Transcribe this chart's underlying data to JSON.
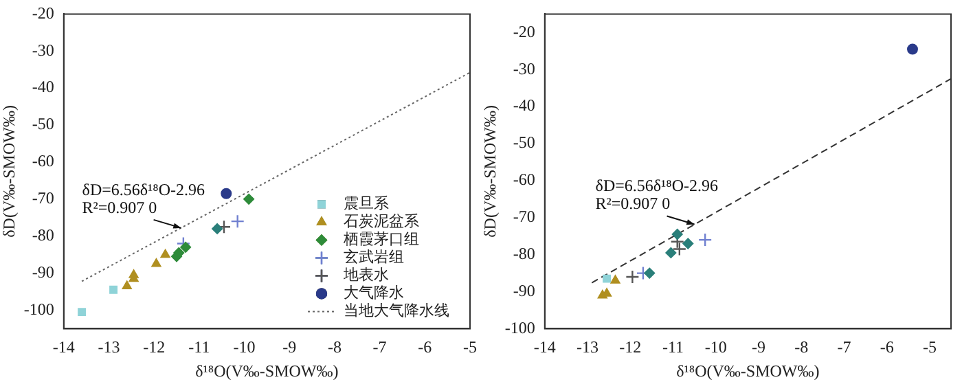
{
  "chart_data": [
    {
      "type": "scatter",
      "xlabel": "δ¹⁸O(V‰-SMOW‰)",
      "ylabel": "δD(V‰-SMOW‰)",
      "xlim": [
        -14,
        -5
      ],
      "ylim": [
        -105,
        -20
      ],
      "xticks": [
        -14,
        -13,
        -12,
        -11,
        -10,
        -9,
        -8,
        -7,
        -6,
        -5
      ],
      "yticks": [
        -20,
        -30,
        -40,
        -50,
        -60,
        -70,
        -80,
        -90,
        -100
      ],
      "grid": false,
      "legend": "bottom right",
      "annotations": [
        {
          "text": "δD=6.56δ¹⁸O-2.96",
          "x": -11.4,
          "y": -77.8
        },
        "R²=0.907 0"
      ],
      "series": [
        {
          "name": "震旦系",
          "color": "#8fd3d8",
          "marker": "square",
          "x": [
            -13.6,
            -12.9
          ],
          "values": [
            -100.5,
            -94.5
          ]
        },
        {
          "name": "石炭泥盆系",
          "color": "#b08f20",
          "marker": "triangle",
          "x": [
            -12.6,
            -12.45,
            -12.45,
            -11.95,
            -11.75
          ],
          "values": [
            -93.5,
            -91.5,
            -90.5,
            -87.5,
            -85
          ]
        },
        {
          "name": "栖霞茅口组",
          "color": "#2e8b3a",
          "colors": [
            "#2e8b3a",
            "#2e8b3a",
            "#2e8b3a",
            "#2e8b3a",
            "#2a7f7a"
          ],
          "marker": "diamond",
          "x": [
            -11.5,
            -11.45,
            -11.3,
            -9.9,
            -10.6
          ],
          "values": [
            -85.5,
            -84.5,
            -83,
            -70,
            -78
          ]
        },
        {
          "name": "玄武岩组",
          "color": "#7080d0",
          "marker": "cross",
          "x": [
            -11.35,
            -10.15
          ],
          "values": [
            -82,
            -76
          ]
        },
        {
          "name": "地表水",
          "color": "#555555",
          "marker": "cross",
          "x": [
            -10.45
          ],
          "values": [
            -77.5
          ]
        },
        {
          "name": "大气降水",
          "color": "#2a3a8a",
          "marker": "circle",
          "x": [
            -10.4
          ],
          "values": [
            -68.5
          ]
        },
        {
          "name": "当地大气降水线",
          "type": "line",
          "color": "#666666",
          "line_style": "dotted",
          "marker": "none",
          "x": [
            -13.6,
            -5
          ],
          "values": [
            -92.2,
            -35.8
          ]
        }
      ]
    },
    {
      "type": "scatter",
      "xlabel": "δ¹⁸O(V‰-SMOW‰)",
      "ylabel": "δD(V‰-SMOW‰)",
      "xlim": [
        -14,
        -4.5
      ],
      "ylim": [
        -100,
        -15
      ],
      "xticks": [
        -14,
        -13,
        -12,
        -11,
        -10,
        -9,
        -8,
        -7,
        -6,
        -5
      ],
      "yticks": [
        -20,
        -30,
        -40,
        -50,
        -60,
        -70,
        -80,
        -90,
        -100
      ],
      "grid": false,
      "legend": false,
      "annotations": [
        {
          "text": "δD=6.56δ¹⁸O-2.96",
          "x": -10.5,
          "y": -71.8
        },
        "R²=0.907 0"
      ],
      "series": [
        {
          "color": "#8fd3d8",
          "marker": "square",
          "x": [
            -12.55
          ],
          "values": [
            -86.5
          ]
        },
        {
          "color": "#b08f20",
          "marker": "triangle",
          "x": [
            -12.65,
            -12.55,
            -12.35
          ],
          "values": [
            -91,
            -90.5,
            -87
          ]
        },
        {
          "color": "#2a7f7a",
          "marker": "diamond",
          "x": [
            -10.9,
            -10.65,
            -11.05,
            -11.55
          ],
          "values": [
            -74.5,
            -77,
            -79.5,
            -85
          ]
        },
        {
          "color": "#7080d0",
          "marker": "cross",
          "x": [
            -11.7,
            -10.25
          ],
          "values": [
            -85,
            -76
          ]
        },
        {
          "color": "#555555",
          "marker": "cross",
          "x": [
            -10.9,
            -10.85,
            -11.95
          ],
          "values": [
            -76.5,
            -78.5,
            -86
          ]
        },
        {
          "color": "#2a3a8a",
          "marker": "circle",
          "x": [
            -5.4
          ],
          "values": [
            -24.5
          ]
        },
        {
          "type": "line",
          "color": "#333333",
          "line_style": "dashed",
          "marker": "none",
          "x": [
            -12.9,
            -4.5
          ],
          "values": [
            -87.6,
            -32.5
          ]
        }
      ]
    }
  ]
}
